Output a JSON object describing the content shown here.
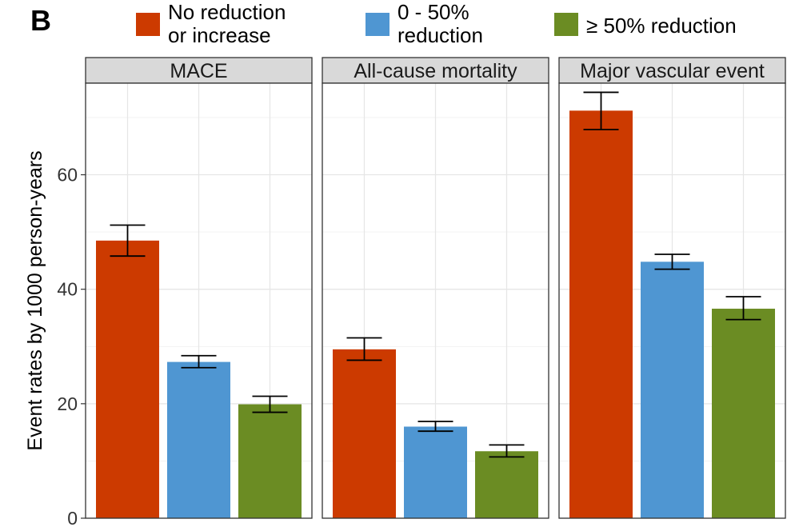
{
  "panel_label": "B",
  "chart_data": {
    "type": "bar",
    "ylabel": "Event rates by 1000 person-years",
    "ylim": [
      0,
      76
    ],
    "yticks": [
      0,
      20,
      40,
      60
    ],
    "grid": true,
    "legend_position": "top",
    "legend": [
      {
        "lines": [
          "No reduction",
          "or increase"
        ],
        "color": "#cc3a00"
      },
      {
        "lines": [
          "0 - 50%",
          "reduction"
        ],
        "color": "#4f96d2"
      },
      {
        "lines": [
          "≥ 50% reduction"
        ],
        "color": "#6b8c23"
      }
    ],
    "series_colors": [
      "#cc3a00",
      "#4f96d2",
      "#6b8c23"
    ],
    "facets": [
      {
        "title": "MACE",
        "values": [
          48.5,
          27.3,
          19.9
        ],
        "ci_low": [
          45.8,
          26.3,
          18.5
        ],
        "ci_high": [
          51.2,
          28.4,
          21.3
        ]
      },
      {
        "title": "All-cause mortality",
        "values": [
          29.5,
          16.0,
          11.7
        ],
        "ci_low": [
          27.6,
          15.2,
          10.7
        ],
        "ci_high": [
          31.5,
          16.9,
          12.8
        ]
      },
      {
        "title": "Major vascular event",
        "values": [
          71.2,
          44.8,
          36.6
        ],
        "ci_low": [
          67.9,
          43.5,
          34.7
        ],
        "ci_high": [
          74.4,
          46.1,
          38.7
        ]
      }
    ]
  }
}
